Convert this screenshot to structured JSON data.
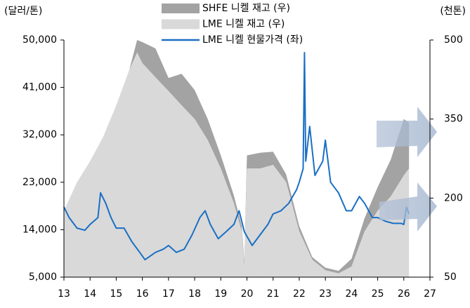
{
  "chart_data": {
    "type": "combo",
    "ylabel": "(달러/톤)",
    "y2label": "(천톤)",
    "xlim": [
      13,
      27
    ],
    "xticks": [
      13,
      14,
      15,
      16,
      17,
      18,
      19,
      20,
      21,
      22,
      23,
      24,
      25,
      26,
      27
    ],
    "ylim": [
      5000,
      50000
    ],
    "yticks": [
      {
        "value": 5000,
        "label": "5,000"
      },
      {
        "value": 14000,
        "label": "14,000"
      },
      {
        "value": 23000,
        "label": "23,000"
      },
      {
        "value": 32000,
        "label": "32,000"
      },
      {
        "value": 41000,
        "label": "41,000"
      },
      {
        "value": 50000,
        "label": "50,000"
      }
    ],
    "y2lim": [
      50,
      500
    ],
    "y2ticks": [
      50,
      200,
      350,
      500
    ],
    "stacked": true,
    "series": [
      {
        "name": "SHFE 니켈 재고 (우)",
        "type": "area",
        "axis": "y2",
        "color": "#a3a3a3",
        "x": [
          13,
          13.5,
          14,
          14.5,
          15,
          15.5,
          15.8,
          16,
          16.5,
          17,
          17.5,
          18,
          18.5,
          19,
          19.5,
          19.8,
          19.9,
          20,
          20.5,
          21,
          21.5,
          22,
          22.5,
          23,
          23.5,
          24,
          24.5,
          25,
          25.5,
          26,
          26.2
        ],
        "values": [
          0,
          0,
          0,
          0,
          0,
          0,
          24,
          40,
          55,
          25,
          60,
          55,
          40,
          25,
          15,
          10,
          10,
          25,
          30,
          25,
          15,
          10,
          5,
          5,
          5,
          15,
          25,
          45,
          70,
          107,
          87
        ]
      },
      {
        "name": "LME 니켈 재고 (우)",
        "type": "area",
        "axis": "y2",
        "color": "#d9d9d9",
        "x": [
          13,
          13.5,
          14,
          14.5,
          15,
          15.5,
          15.8,
          16,
          16.5,
          17,
          17.5,
          18,
          18.5,
          19,
          19.5,
          19.8,
          19.9,
          20,
          20.5,
          21,
          21.5,
          22,
          22.5,
          23,
          23.5,
          24,
          24.5,
          25,
          25.5,
          26,
          26.2
        ],
        "values": [
          176,
          230,
          270,
          316,
          376,
          443,
          476,
          456,
          429,
          403,
          376,
          350,
          310,
          256,
          190,
          137,
          70,
          256,
          256,
          263,
          230,
          137,
          83,
          63,
          57,
          70,
          137,
          176,
          203,
          243,
          256
        ]
      },
      {
        "name": "LME 니켈 현물가격 (좌)",
        "type": "line",
        "axis": "y",
        "color": "#1a6fc4",
        "x": [
          13,
          13.2,
          13.5,
          13.8,
          14,
          14.3,
          14.4,
          14.6,
          14.8,
          15,
          15.3,
          15.6,
          15.9,
          16.1,
          16.5,
          16.8,
          17,
          17.3,
          17.6,
          17.9,
          18.2,
          18.4,
          18.6,
          18.9,
          19.2,
          19.5,
          19.7,
          19.9,
          20.2,
          20.5,
          20.8,
          21,
          21.3,
          21.6,
          21.9,
          22,
          22.15,
          22.2,
          22.25,
          22.4,
          22.6,
          22.9,
          23,
          23.2,
          23.5,
          23.8,
          24,
          24.3,
          24.5,
          24.8,
          25,
          25.3,
          25.6,
          25.9,
          26,
          26.1,
          26.2
        ],
        "values": [
          18300,
          16300,
          14300,
          13900,
          15000,
          16300,
          21000,
          19000,
          16300,
          14300,
          14300,
          11700,
          9700,
          8300,
          9700,
          10300,
          11000,
          9700,
          10300,
          13000,
          16300,
          17600,
          15000,
          12300,
          13600,
          15000,
          17600,
          13600,
          11000,
          13000,
          15000,
          17000,
          17600,
          19000,
          21600,
          23000,
          25600,
          47600,
          27000,
          33600,
          24300,
          27000,
          31000,
          23000,
          21000,
          17600,
          17600,
          20300,
          19000,
          16300,
          16300,
          15600,
          15200,
          15200,
          15000,
          18300,
          17000
        ]
      }
    ]
  }
}
